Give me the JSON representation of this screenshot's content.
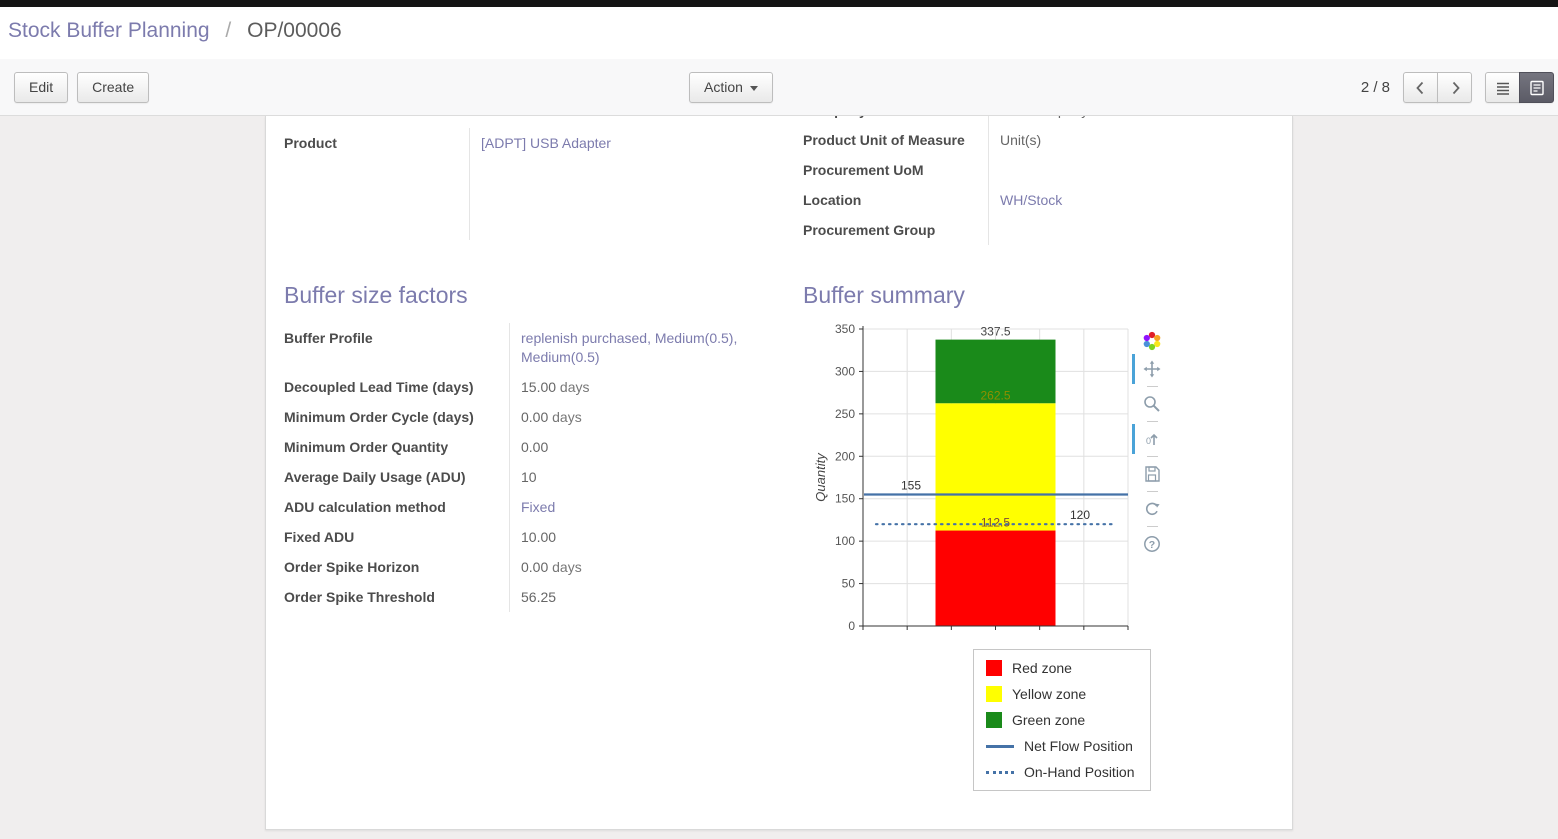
{
  "breadcrumb": {
    "parent": "Stock Buffer Planning",
    "separator": "/",
    "current": "OP/00006"
  },
  "control_bar": {
    "edit": "Edit",
    "create": "Create",
    "action": "Action",
    "pager": "2 / 8"
  },
  "icons": {
    "pager_prev": "chevron-left-icon",
    "pager_next": "chevron-right-icon",
    "list_view": "list-view-icon",
    "form_view": "form-view-icon",
    "action_caret": "caret-down-icon"
  },
  "form": {
    "top_left_fields": [
      {
        "label": "Product",
        "value": "[ADPT] USB Adapter",
        "link": true
      }
    ],
    "top_right_fields": [
      {
        "label": "Company",
        "value": "YourCompany",
        "clipped": true
      },
      {
        "label": "Product Unit of Measure",
        "value": "Unit(s)"
      },
      {
        "label": "Procurement UoM",
        "value": ""
      },
      {
        "label": "Location",
        "value": "WH/Stock",
        "link": true
      },
      {
        "label": "Procurement Group",
        "value": ""
      }
    ],
    "factors": {
      "title": "Buffer size factors",
      "fields": [
        {
          "label": "Buffer Profile",
          "value": "replenish purchased, Medium(0.5), Medium(0.5)",
          "link": true
        },
        {
          "label": "Decoupled Lead Time (days)",
          "value": "15.00",
          "suffix": "days"
        },
        {
          "label": "Minimum Order Cycle (days)",
          "value": "0.00",
          "suffix": "days"
        },
        {
          "label": "Minimum Order Quantity",
          "value": "0.00"
        },
        {
          "label": "Average Daily Usage (ADU)",
          "value": "10"
        },
        {
          "label": "ADU calculation method",
          "value": "Fixed",
          "link": true
        },
        {
          "label": "Fixed ADU",
          "value": "10.00"
        },
        {
          "label": "Order Spike Horizon",
          "value": "0.00",
          "suffix": "days"
        },
        {
          "label": "Order Spike Threshold",
          "value": "56.25"
        }
      ]
    },
    "summary": {
      "title": "Buffer summary"
    }
  },
  "chart_data": {
    "type": "bar",
    "title": "Buffer summary",
    "xlabel": "",
    "ylabel": "Quantity",
    "ylim": [
      0,
      350
    ],
    "yticks": [
      0,
      50,
      100,
      150,
      200,
      250,
      300,
      350
    ],
    "grid": true,
    "stack": {
      "segments": [
        {
          "name": "Red zone",
          "from": 0,
          "to": 112.5,
          "color": "#ff0000",
          "label": "112.5",
          "label_color": "#7a4a3a"
        },
        {
          "name": "Yellow zone",
          "from": 112.5,
          "to": 262.5,
          "color": "#ffff00",
          "label": "262.5",
          "label_color": "#8f8f00"
        },
        {
          "name": "Green zone",
          "from": 262.5,
          "to": 337.5,
          "color": "#1a8a1a",
          "label": "337.5",
          "label_color": "#444444"
        }
      ]
    },
    "lines": [
      {
        "name": "Net Flow Position",
        "value": 155,
        "label": "155",
        "style": "solid",
        "color": "#4572a7",
        "label_anchor": "left"
      },
      {
        "name": "On-Hand Position",
        "value": 120,
        "label": "120",
        "style": "dotted",
        "color": "#4572a7",
        "label_anchor": "right"
      }
    ],
    "legend_position": "bottom-right",
    "legend": [
      {
        "label": "Red zone",
        "swatch": "square",
        "color": "#ff0000"
      },
      {
        "label": "Yellow zone",
        "swatch": "square",
        "color": "#ffff00"
      },
      {
        "label": "Green zone",
        "swatch": "square",
        "color": "#1a8a1a"
      },
      {
        "label": "Net Flow Position",
        "swatch": "line",
        "color": "#4572a7"
      },
      {
        "label": "On-Hand Position",
        "swatch": "dotted",
        "color": "#4572a7"
      }
    ],
    "toolbar_icons": [
      "chart-logo",
      "pan",
      "zoom",
      "data-zoom",
      "save-image",
      "restore",
      "help"
    ]
  }
}
